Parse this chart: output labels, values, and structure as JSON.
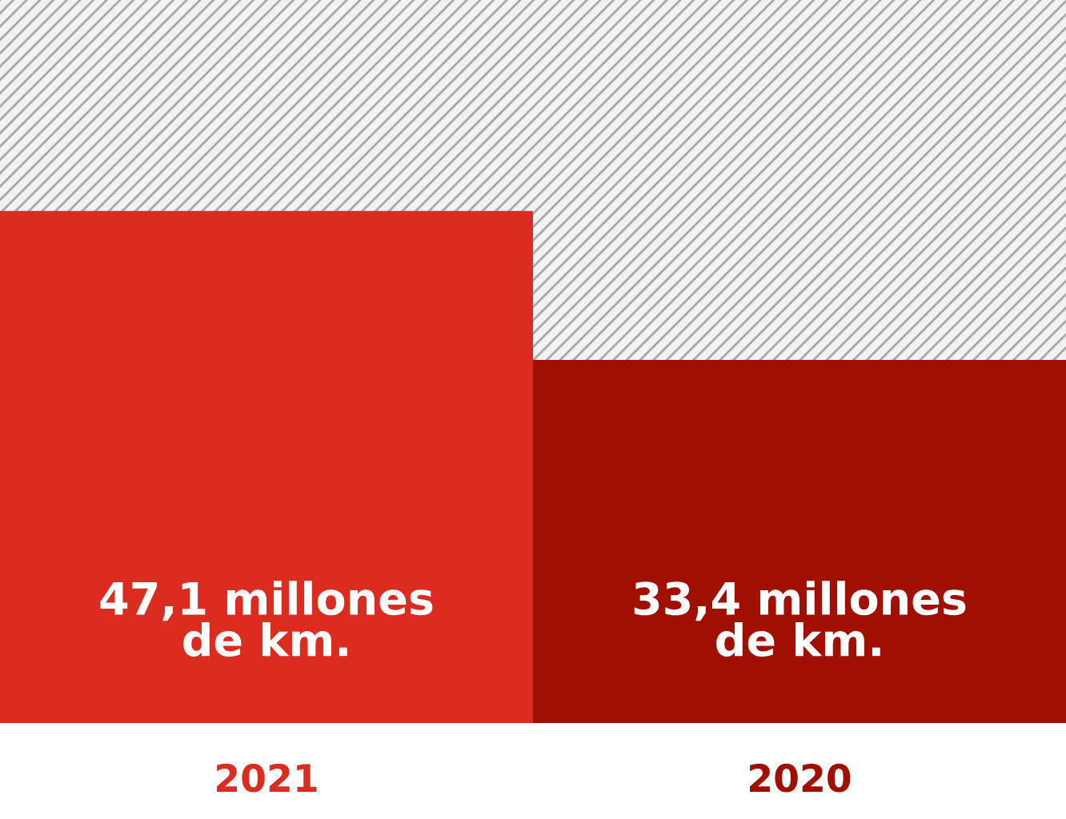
{
  "chart_data": {
    "type": "bar",
    "categories": [
      "2021",
      "2020"
    ],
    "values": [
      47.1,
      33.4
    ],
    "colors": [
      "#dc2b1f",
      "#a10f00"
    ],
    "value_labels": [
      "47,1 millones\nde km.",
      "33,4 millones\nde km."
    ],
    "ylim": [
      0,
      66.5
    ],
    "grid": false,
    "legend": false
  }
}
